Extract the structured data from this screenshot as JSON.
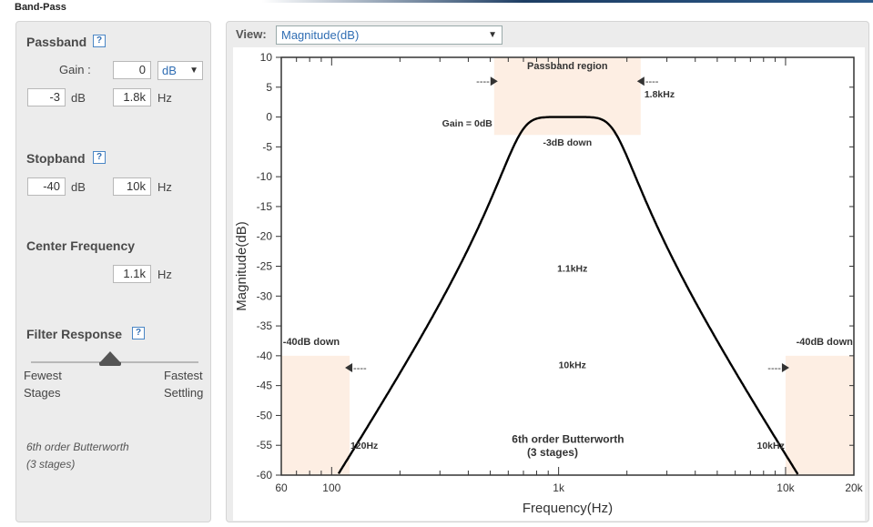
{
  "app": {
    "title": "Band-Pass"
  },
  "colors": {
    "accent": "#2f6db3",
    "region": "#fdeee3",
    "panel": "#ececec"
  },
  "passband": {
    "title": "Passband",
    "help_icon": "question-icon",
    "gain_label": "Gain :",
    "gain_value": "0",
    "gain_unit_option": "dB",
    "attenuation_value": "-3",
    "attenuation_unit": "dB",
    "frequency_value": "1.8k",
    "frequency_unit": "Hz"
  },
  "stopband": {
    "title": "Stopband",
    "attenuation_value": "-40",
    "attenuation_unit": "dB",
    "frequency_value": "10k",
    "frequency_unit": "Hz"
  },
  "center": {
    "title": "Center Frequency",
    "frequency_value": "1.1k",
    "frequency_unit": "Hz"
  },
  "response": {
    "title": "Filter Response",
    "left_label_1": "Fewest",
    "left_label_2": "Stages",
    "right_label_1": "Fastest",
    "right_label_2": "Settling",
    "slider_position": 0.47
  },
  "filter_note": {
    "line1": "6th order Butterworth",
    "line2": "(3 stages)"
  },
  "view": {
    "label": "View:",
    "selected": "Magnitude(dB)"
  },
  "chart_data": {
    "type": "line",
    "xlabel": "Frequency(Hz)",
    "ylabel": "Magnitude(dB)",
    "xscale": "log",
    "xlim": [
      60,
      20000
    ],
    "ylim": [
      -60,
      10
    ],
    "x_tick_labels": [
      {
        "value": 60,
        "label": "60"
      },
      {
        "value": 100,
        "label": "100"
      },
      {
        "value": 1000,
        "label": "1k"
      },
      {
        "value": 10000,
        "label": "10k"
      },
      {
        "value": 20000,
        "label": "20k"
      }
    ],
    "y_ticks": [
      10,
      5,
      0,
      -5,
      -10,
      -15,
      -20,
      -25,
      -30,
      -35,
      -40,
      -45,
      -50,
      -55,
      -60
    ],
    "center_frequency": 1100,
    "passband_edges": [
      672,
      1800
    ],
    "filter_order": 6,
    "stopband_edges": [
      120,
      10000
    ],
    "regions": [
      {
        "name": "passband",
        "x": [
          520,
          2300
        ],
        "y": [
          -3,
          10
        ]
      },
      {
        "name": "stopband-low",
        "x": [
          60,
          120
        ],
        "y": [
          -60,
          -40
        ]
      },
      {
        "name": "stopband-high",
        "x": [
          10000,
          20000
        ],
        "y": [
          -60,
          -40
        ]
      }
    ],
    "annotations": {
      "passband_region": "Passband region",
      "gain": "Gain = 0dB",
      "passband_edge": "1.8kHz",
      "minus3": "-3dB down",
      "center": "1.1kHz",
      "stop_left": "-40dB down",
      "stop_right": "-40dB down",
      "stopband_edge": "10kHz",
      "low_edge": "120Hz",
      "high_edge": "10kHz",
      "order_line1": "6th order Butterworth",
      "order_line2": "(3 stages)",
      "dash": "----"
    }
  }
}
